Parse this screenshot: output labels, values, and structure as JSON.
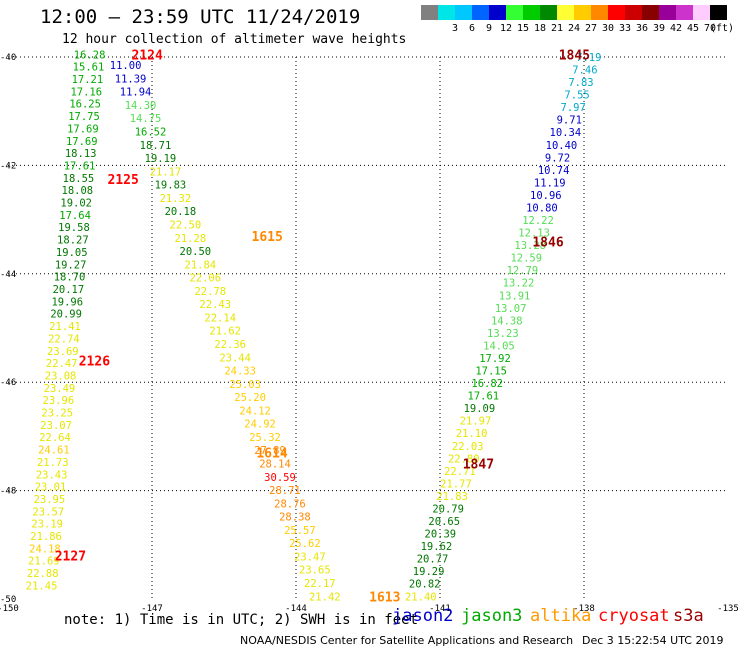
{
  "header": {
    "title": "12:00 — 23:59 UTC 11/24/2019",
    "subtitle": "12 hour collection of altimeter wave heights"
  },
  "color_scale": {
    "unit": "(ft)",
    "swatches": [
      {
        "color": "#808080",
        "label": ""
      },
      {
        "color": "#00e6e6",
        "label": "3"
      },
      {
        "color": "#00c8ff",
        "label": "6"
      },
      {
        "color": "#0064ff",
        "label": "9"
      },
      {
        "color": "#0000cc",
        "label": "12"
      },
      {
        "color": "#33ff33",
        "label": "15"
      },
      {
        "color": "#00cc00",
        "label": "18"
      },
      {
        "color": "#008800",
        "label": "21"
      },
      {
        "color": "#ffff33",
        "label": "24"
      },
      {
        "color": "#ffcc00",
        "label": "27"
      },
      {
        "color": "#ff8800",
        "label": "30"
      },
      {
        "color": "#ff0000",
        "label": "33"
      },
      {
        "color": "#cc0000",
        "label": "36"
      },
      {
        "color": "#880000",
        "label": "39"
      },
      {
        "color": "#990099",
        "label": "42"
      },
      {
        "color": "#cc33cc",
        "label": "45"
      },
      {
        "color": "#ffccff",
        "label": "70"
      },
      {
        "color": "#000000",
        "label": ""
      }
    ]
  },
  "chart_data": {
    "type": "scatter",
    "xlim": [
      -150,
      -135
    ],
    "ylim": [
      -50,
      -40
    ],
    "x_ticks": [
      {
        "value": -150,
        "label": "-150"
      },
      {
        "value": -147,
        "label": "-147"
      },
      {
        "value": -144,
        "label": "-144"
      },
      {
        "value": -141,
        "label": "-141"
      },
      {
        "value": -138,
        "label": "-138"
      },
      {
        "value": -135,
        "label": "-135"
      }
    ],
    "y_ticks": [
      {
        "value": -40,
        "label": "-40"
      },
      {
        "value": -42,
        "label": "-42"
      },
      {
        "value": -44,
        "label": "-44"
      },
      {
        "value": -46,
        "label": "-46"
      },
      {
        "value": -48,
        "label": "-48"
      },
      {
        "value": -50,
        "label": "-50"
      }
    ],
    "grid": true,
    "time_labels": [
      {
        "lon": -147.1,
        "lat": -39.95,
        "text": "2124",
        "color": "#ff0000"
      },
      {
        "lon": -147.6,
        "lat": -42.25,
        "text": "2125",
        "color": "#ff0000"
      },
      {
        "lon": -148.2,
        "lat": -45.6,
        "text": "2126",
        "color": "#ff0000"
      },
      {
        "lon": -148.7,
        "lat": -49.2,
        "text": "2127",
        "color": "#ff0000"
      },
      {
        "lon": -138.2,
        "lat": -39.95,
        "text": "1845",
        "color": "#990000"
      },
      {
        "lon": -138.75,
        "lat": -43.4,
        "text": "1846",
        "color": "#990000"
      },
      {
        "lon": -140.2,
        "lat": -47.5,
        "text": "1847",
        "color": "#990000"
      },
      {
        "lon": -144.6,
        "lat": -43.3,
        "text": "1615",
        "color": "#ff8800"
      },
      {
        "lon": -144.5,
        "lat": -47.3,
        "text": "1614",
        "color": "#ff8800"
      },
      {
        "lon": -142.15,
        "lat": -49.95,
        "text": "1613",
        "color": "#ff8800"
      }
    ],
    "tracks": [
      {
        "name": "cryosat",
        "lon_start": -148.3,
        "lon_end": -149.3,
        "lat_start": -39.95,
        "lat_end": -49.75,
        "values": [
          "16.28",
          "15.61",
          "17.21",
          "17.16",
          "16.25",
          "17.75",
          "17.69",
          "17.69",
          "18.13",
          "17.61",
          "18.55",
          "18.08",
          "19.02",
          "17.64",
          "19.58",
          "18.27",
          "19.05",
          "19.27",
          "18.70",
          "20.17",
          "19.96",
          "20.99",
          "21.41",
          "22.74",
          "23.69",
          "22.47",
          "23.08",
          "23.49",
          "23.96",
          "23.25",
          "23.07",
          "22.64",
          "24.61",
          "21.73",
          "23.43",
          "23.01",
          "23.95",
          "23.57",
          "23.19",
          "21.86",
          "24.18",
          "21.69",
          "22.88",
          "21.45"
        ]
      },
      {
        "name": "altika",
        "lon_start": -147.55,
        "lon_end": -143.4,
        "lat_start": -40.15,
        "lat_end": -49.95,
        "values": [
          "11.00",
          "11.39",
          "11.94",
          "14.30",
          "14.75",
          "16.52",
          "18.71",
          "19.19",
          "21.17",
          "19.83",
          "21.32",
          "20.18",
          "22.50",
          "21.28",
          "20.50",
          "21.84",
          "22.06",
          "22.78",
          "22.43",
          "22.14",
          "21.62",
          "22.36",
          "23.44",
          "24.33",
          "25.03",
          "25.20",
          "24.12",
          "24.92",
          "25.32",
          "27.89",
          "28.14",
          "30.59",
          "28.71",
          "28.76",
          "28.38",
          "25.57",
          "25.62",
          "23.47",
          "23.65",
          "22.17",
          "21.42"
        ]
      },
      {
        "name": "jason3",
        "lon_start": -137.9,
        "lon_end": -141.4,
        "lat_start": -40.0,
        "lat_end": -49.95,
        "values": [
          "7.19",
          "7.46",
          "7.83",
          "7.55",
          "7.97",
          "9.71",
          "10.34",
          "10.40",
          "9.72",
          "10.74",
          "11.19",
          "10.96",
          "10.80",
          "12.22",
          "12.13",
          "13.28",
          "12.59",
          "12.79",
          "13.22",
          "13.91",
          "13.07",
          "14.38",
          "13.23",
          "14.05",
          "17.92",
          "17.15",
          "16.82",
          "17.61",
          "19.09",
          "21.97",
          "21.10",
          "22.03",
          "22.80",
          "22.71",
          "21.77",
          "21.83",
          "20.79",
          "20.65",
          "20.39",
          "19.62",
          "20.77",
          "19.29",
          "20.82",
          "21.40"
        ]
      }
    ],
    "legend": [
      {
        "label": "jason2",
        "color": "#0000cc"
      },
      {
        "label": "jason3",
        "color": "#00aa00"
      },
      {
        "label": "altika",
        "color": "#ff9900"
      },
      {
        "label": "cryosat",
        "color": "#ff0000"
      },
      {
        "label": "s3a",
        "color": "#990000"
      }
    ]
  },
  "note": "note: 1) Time is in UTC; 2) SWH is in feet",
  "footer": {
    "credit": "NOAA/NESDIS Center for Satellite Applications and Research",
    "timestamp": "Dec  3 15:22:54 UTC 2019"
  }
}
